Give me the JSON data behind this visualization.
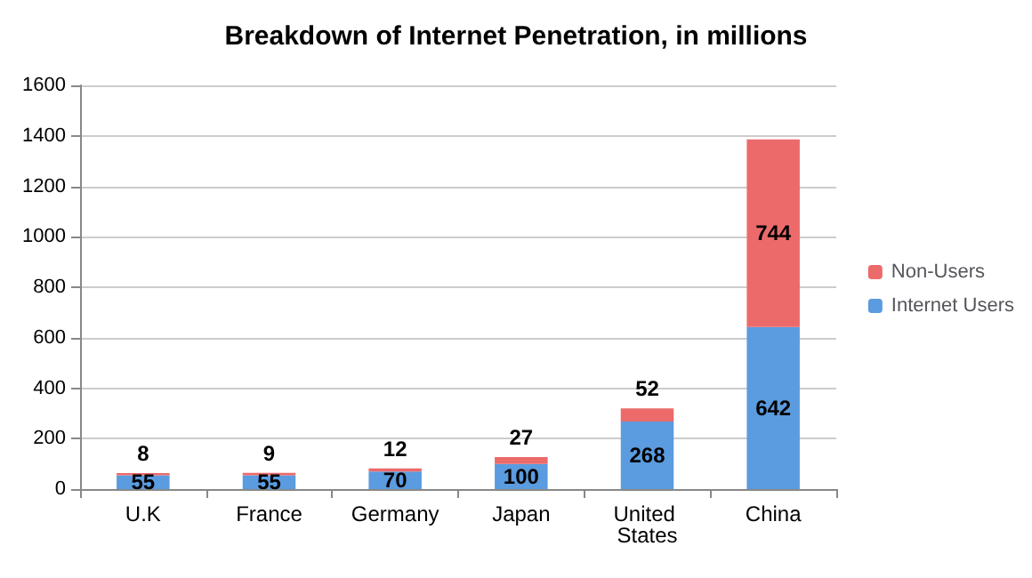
{
  "chart_data": {
    "type": "bar",
    "title": "Breakdown of Internet Penetration, in millions",
    "categories": [
      "U.K",
      "France",
      "Germany",
      "Japan",
      "United States",
      "China"
    ],
    "series": [
      {
        "name": "Internet Users",
        "color": "#5b9bdf",
        "values": [
          55,
          55,
          70,
          100,
          268,
          642
        ]
      },
      {
        "name": "Non-Users",
        "color": "#ec6a6a",
        "values": [
          8,
          9,
          12,
          27,
          52,
          744
        ]
      }
    ],
    "stacked": true,
    "data_labels": true,
    "ylim": [
      0,
      1600
    ],
    "yticks": [
      0,
      200,
      400,
      600,
      800,
      1000,
      1200,
      1400,
      1600
    ],
    "grid": "y",
    "legend": "right"
  }
}
